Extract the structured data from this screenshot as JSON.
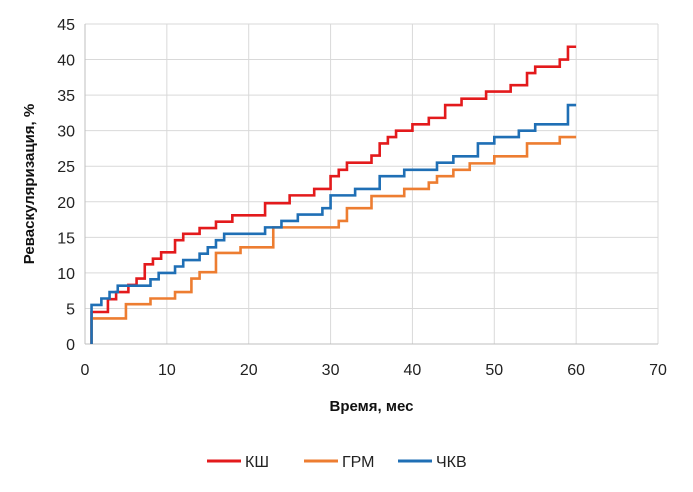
{
  "chart_data": {
    "type": "line",
    "step": true,
    "xlabel": "Время, мес",
    "ylabel": "Реваскуляризация, %",
    "xlim": [
      0,
      70
    ],
    "ylim": [
      0,
      45
    ],
    "xticks": [
      0,
      10,
      20,
      30,
      40,
      50,
      60,
      70
    ],
    "yticks": [
      0,
      5,
      10,
      15,
      20,
      25,
      30,
      35,
      40,
      45
    ],
    "grid": true,
    "legend_position": "bottom",
    "series": [
      {
        "name": "КШ",
        "color": "#e31a1c",
        "points": [
          [
            0.8,
            0
          ],
          [
            0.8,
            4.5
          ],
          [
            2.8,
            4.5
          ],
          [
            2.8,
            6.3
          ],
          [
            3.8,
            6.3
          ],
          [
            3.8,
            7.3
          ],
          [
            5.3,
            7.3
          ],
          [
            5.3,
            8.3
          ],
          [
            6.3,
            8.3
          ],
          [
            6.3,
            9.2
          ],
          [
            7.3,
            9.2
          ],
          [
            7.3,
            11.2
          ],
          [
            8.3,
            11.2
          ],
          [
            8.3,
            12
          ],
          [
            9.3,
            12
          ],
          [
            9.3,
            12.9
          ],
          [
            11,
            12.9
          ],
          [
            11,
            14.6
          ],
          [
            12,
            14.6
          ],
          [
            12,
            15.5
          ],
          [
            14,
            15.5
          ],
          [
            14,
            16.3
          ],
          [
            16,
            16.3
          ],
          [
            16,
            17.2
          ],
          [
            18,
            17.2
          ],
          [
            18,
            18.1
          ],
          [
            22,
            18.1
          ],
          [
            22,
            19.8
          ],
          [
            25,
            19.8
          ],
          [
            25,
            20.9
          ],
          [
            28,
            20.9
          ],
          [
            28,
            21.8
          ],
          [
            30,
            21.8
          ],
          [
            30,
            23.6
          ],
          [
            31,
            23.6
          ],
          [
            31,
            24.5
          ],
          [
            32,
            24.5
          ],
          [
            32,
            25.5
          ],
          [
            35,
            25.5
          ],
          [
            35,
            26.5
          ],
          [
            36,
            26.5
          ],
          [
            36,
            28.2
          ],
          [
            37,
            28.2
          ],
          [
            37,
            29.1
          ],
          [
            38,
            29.1
          ],
          [
            38,
            30
          ],
          [
            40,
            30
          ],
          [
            40,
            30.9
          ],
          [
            42,
            30.9
          ],
          [
            42,
            31.8
          ],
          [
            44,
            31.8
          ],
          [
            44,
            33.6
          ],
          [
            46,
            33.6
          ],
          [
            46,
            34.5
          ],
          [
            49,
            34.5
          ],
          [
            49,
            35.5
          ],
          [
            52,
            35.5
          ],
          [
            52,
            36.4
          ],
          [
            54,
            36.4
          ],
          [
            54,
            38.1
          ],
          [
            55,
            38.1
          ],
          [
            55,
            39
          ],
          [
            58,
            39
          ],
          [
            58,
            40
          ],
          [
            59,
            40
          ],
          [
            59,
            41.8
          ],
          [
            60,
            41.8
          ]
        ]
      },
      {
        "name": "ГРМ",
        "color": "#ed7d31",
        "points": [
          [
            0.8,
            0
          ],
          [
            0.8,
            3.6
          ],
          [
            5,
            3.6
          ],
          [
            5,
            5.6
          ],
          [
            8,
            5.6
          ],
          [
            8,
            6.4
          ],
          [
            11,
            6.4
          ],
          [
            11,
            7.3
          ],
          [
            13,
            7.3
          ],
          [
            13,
            9.2
          ],
          [
            14,
            9.2
          ],
          [
            14,
            10.1
          ],
          [
            16,
            10.1
          ],
          [
            16,
            12.8
          ],
          [
            19,
            12.8
          ],
          [
            19,
            13.6
          ],
          [
            23,
            13.6
          ],
          [
            23,
            16.4
          ],
          [
            31,
            16.4
          ],
          [
            31,
            17.3
          ],
          [
            32,
            17.3
          ],
          [
            32,
            19.1
          ],
          [
            35,
            19.1
          ],
          [
            35,
            20.8
          ],
          [
            39,
            20.8
          ],
          [
            39,
            21.8
          ],
          [
            42,
            21.8
          ],
          [
            42,
            22.7
          ],
          [
            43,
            22.7
          ],
          [
            43,
            23.6
          ],
          [
            45,
            23.6
          ],
          [
            45,
            24.5
          ],
          [
            47,
            24.5
          ],
          [
            47,
            25.4
          ],
          [
            50,
            25.4
          ],
          [
            50,
            26.4
          ],
          [
            54,
            26.4
          ],
          [
            54,
            28.2
          ],
          [
            58,
            28.2
          ],
          [
            58,
            29.1
          ],
          [
            60,
            29.1
          ]
        ]
      },
      {
        "name": "ЧКВ",
        "color": "#1f6fb5",
        "points": [
          [
            0.8,
            0
          ],
          [
            0.8,
            5.5
          ],
          [
            2,
            5.5
          ],
          [
            2,
            6.4
          ],
          [
            3,
            6.4
          ],
          [
            3,
            7.3
          ],
          [
            4,
            7.3
          ],
          [
            4,
            8.2
          ],
          [
            8,
            8.2
          ],
          [
            8,
            9.1
          ],
          [
            9,
            9.1
          ],
          [
            9,
            10
          ],
          [
            11,
            10
          ],
          [
            11,
            10.9
          ],
          [
            12,
            10.9
          ],
          [
            12,
            11.8
          ],
          [
            14,
            11.8
          ],
          [
            14,
            12.7
          ],
          [
            15,
            12.7
          ],
          [
            15,
            13.6
          ],
          [
            16,
            13.6
          ],
          [
            16,
            14.6
          ],
          [
            17,
            14.6
          ],
          [
            17,
            15.5
          ],
          [
            22,
            15.5
          ],
          [
            22,
            16.4
          ],
          [
            24,
            16.4
          ],
          [
            24,
            17.3
          ],
          [
            26,
            17.3
          ],
          [
            26,
            18.2
          ],
          [
            29,
            18.2
          ],
          [
            29,
            19.1
          ],
          [
            30,
            19.1
          ],
          [
            30,
            20.9
          ],
          [
            33,
            20.9
          ],
          [
            33,
            21.8
          ],
          [
            36,
            21.8
          ],
          [
            36,
            23.6
          ],
          [
            39,
            23.6
          ],
          [
            39,
            24.5
          ],
          [
            43,
            24.5
          ],
          [
            43,
            25.5
          ],
          [
            45,
            25.5
          ],
          [
            45,
            26.4
          ],
          [
            48,
            26.4
          ],
          [
            48,
            28.2
          ],
          [
            50,
            28.2
          ],
          [
            50,
            29.1
          ],
          [
            53,
            29.1
          ],
          [
            53,
            30
          ],
          [
            55,
            30
          ],
          [
            55,
            30.9
          ],
          [
            59,
            30.9
          ],
          [
            59,
            33.6
          ],
          [
            60,
            33.6
          ]
        ]
      }
    ]
  }
}
